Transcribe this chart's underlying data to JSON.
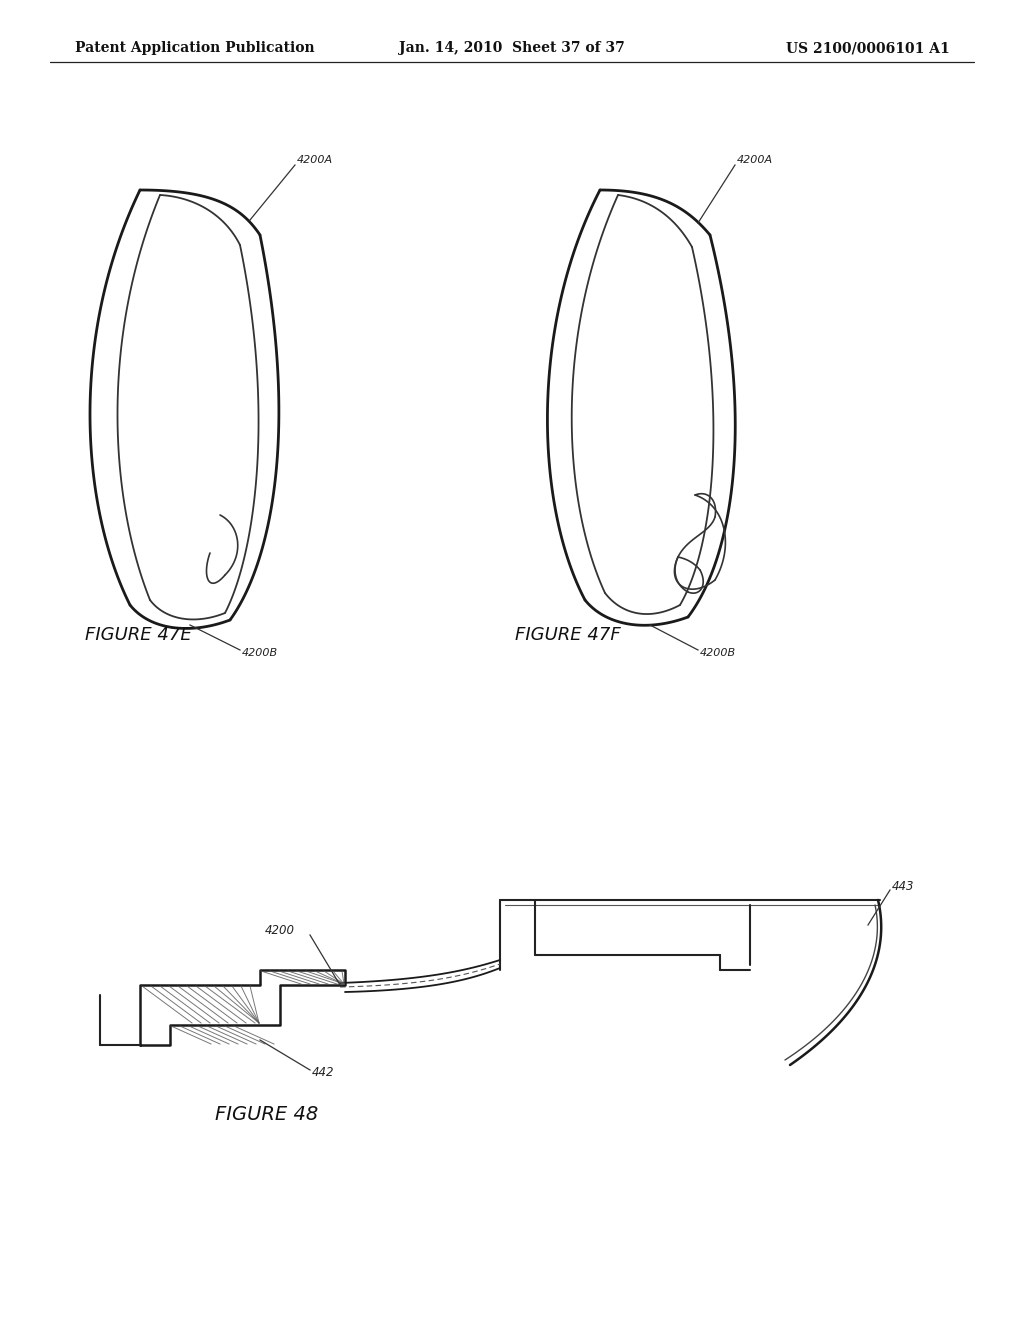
{
  "background_color": "#ffffff",
  "header_left": "Patent Application Publication",
  "header_center": "Jan. 14, 2010  Sheet 37 of 37",
  "header_right": "US 2100/0006101 A1",
  "header_fontsize": 10,
  "figure_47e_label": "FIGURE 47E",
  "figure_47f_label": "FIGURE 47F",
  "figure_48_label": "FIGURE 48",
  "label_4200A_left": "4200A",
  "label_4200B_left": "4200B",
  "label_4200A_right": "4200A",
  "label_4200B_right": "4200B",
  "label_4200": "4200",
  "label_442": "442",
  "label_443": "443"
}
